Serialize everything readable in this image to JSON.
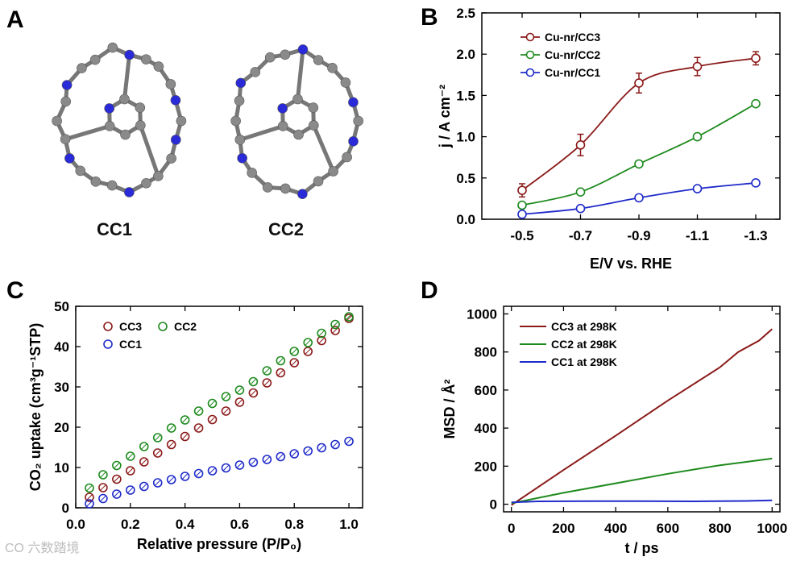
{
  "panels": {
    "a": {
      "letter": "A",
      "molecules": [
        {
          "label": "CC1"
        },
        {
          "label": "CC2"
        }
      ]
    },
    "b": {
      "letter": "B"
    },
    "c": {
      "letter": "C"
    },
    "d": {
      "letter": "D"
    }
  },
  "colors": {
    "cc3": "#8b1a1a",
    "cc2": "#1e8a1e",
    "cc1": "#1f2bc9",
    "carbon": "#8a8a8a",
    "nitrogen": "#2a2ad8"
  },
  "watermark": "CO 六数踏境",
  "chart_data": [
    {
      "id": "B",
      "type": "line",
      "title": "",
      "xlabel": "E/V vs. RHE",
      "ylabel": "j / A cm⁻²",
      "categories": [
        "-0.5",
        "-0.7",
        "-0.9",
        "-1.1",
        "-1.3"
      ],
      "ylim": [
        0,
        2.5
      ],
      "yticks": [
        "0.0",
        "0.5",
        "1.0",
        "1.5",
        "2.0",
        "2.5"
      ],
      "legend_position": "top-left",
      "series": [
        {
          "name": "Cu-nr/CC3",
          "key": "cc3",
          "values": [
            0.35,
            0.9,
            1.65,
            1.85,
            1.95
          ],
          "errors": [
            0.08,
            0.13,
            0.12,
            0.11,
            0.08
          ]
        },
        {
          "name": "Cu-nr/CC2",
          "key": "cc2",
          "values": [
            0.17,
            0.33,
            0.67,
            1.0,
            1.4
          ],
          "errors": [
            0,
            0,
            0,
            0,
            0
          ]
        },
        {
          "name": "Cu-nr/CC1",
          "key": "cc1",
          "values": [
            0.06,
            0.13,
            0.26,
            0.37,
            0.44
          ],
          "errors": [
            0,
            0,
            0,
            0,
            0
          ]
        }
      ]
    },
    {
      "id": "C",
      "type": "scatter",
      "title": "",
      "xlabel": "Relative pressure (P/P₀)",
      "ylabel": "CO₂ uptake (cm³g⁻¹STP)",
      "xlim": [
        0.0,
        1.05
      ],
      "ylim": [
        0,
        50
      ],
      "xticks": [
        "0.0",
        "0.2",
        "0.4",
        "0.6",
        "0.8",
        "1.0"
      ],
      "yticks": [
        "0",
        "10",
        "20",
        "30",
        "40",
        "50"
      ],
      "legend_position": "top-left",
      "x": [
        0.05,
        0.1,
        0.15,
        0.2,
        0.25,
        0.3,
        0.35,
        0.4,
        0.45,
        0.5,
        0.55,
        0.6,
        0.65,
        0.7,
        0.75,
        0.8,
        0.85,
        0.9,
        0.95,
        1.0
      ],
      "series": [
        {
          "name": "CC3",
          "key": "cc3",
          "values": [
            2.6,
            5.0,
            7.1,
            9.2,
            11.4,
            13.6,
            15.7,
            17.7,
            19.8,
            21.9,
            24.0,
            26.2,
            28.5,
            31.0,
            33.5,
            36.0,
            38.8,
            41.5,
            44.0,
            47.0
          ]
        },
        {
          "name": "CC2",
          "key": "cc2",
          "values": [
            4.9,
            8.2,
            10.5,
            12.8,
            15.2,
            17.4,
            19.8,
            21.8,
            24.0,
            25.9,
            27.6,
            29.2,
            31.3,
            34.0,
            36.5,
            38.8,
            41.0,
            43.3,
            45.5,
            47.4
          ]
        },
        {
          "name": "CC1",
          "key": "cc1",
          "values": [
            1.0,
            2.3,
            3.4,
            4.4,
            5.3,
            6.2,
            7.0,
            7.8,
            8.5,
            9.2,
            9.9,
            10.6,
            11.3,
            12.0,
            12.7,
            13.4,
            14.1,
            14.9,
            15.7,
            16.5
          ]
        }
      ]
    },
    {
      "id": "D",
      "type": "line",
      "title": "",
      "xlabel": "t / ps",
      "ylabel": "MSD / Å²",
      "xlim": [
        -30,
        1030
      ],
      "ylim": [
        -40,
        1040
      ],
      "xticks": [
        "0",
        "200",
        "400",
        "600",
        "800",
        "1000"
      ],
      "yticks": [
        "0",
        "200",
        "400",
        "600",
        "800",
        "1000"
      ],
      "legend_position": "top-left",
      "series": [
        {
          "name": "CC3 at 298K",
          "key": "cc3",
          "x": [
            0,
            200,
            400,
            600,
            800,
            870,
            950,
            1000
          ],
          "values": [
            -5,
            180,
            360,
            545,
            720,
            800,
            860,
            920
          ]
        },
        {
          "name": "CC2 at 298K",
          "key": "cc2",
          "x": [
            0,
            200,
            400,
            600,
            800,
            1000
          ],
          "values": [
            5,
            60,
            110,
            160,
            205,
            240
          ]
        },
        {
          "name": "CC1 at 298K",
          "key": "cc1",
          "x": [
            0,
            100,
            300,
            500,
            700,
            900,
            1000
          ],
          "values": [
            10,
            15,
            16,
            16,
            15,
            17,
            20
          ]
        }
      ]
    }
  ]
}
